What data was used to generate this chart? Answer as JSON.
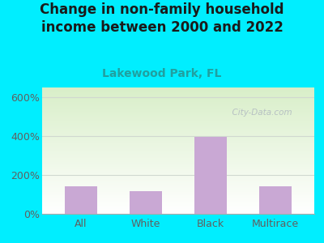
{
  "title": "Change in non-family household\nincome between 2000 and 2022",
  "subtitle": "Lakewood Park, FL",
  "categories": [
    "All",
    "White",
    "Black",
    "Multirace"
  ],
  "values": [
    140,
    115,
    395,
    140
  ],
  "bar_color": "#c9a8d4",
  "background_outer": "#00eeff",
  "ylabel_ticks": [
    0,
    200,
    400,
    600
  ],
  "ylim": [
    0,
    650
  ],
  "watermark": "  City-Data.com",
  "title_fontsize": 12,
  "subtitle_fontsize": 10,
  "tick_fontsize": 9,
  "title_color": "#1a1a1a",
  "subtitle_color": "#20a0a0",
  "tick_color": "#606060",
  "watermark_color": "#b0b8c0",
  "grid_color": "#d0d8d0",
  "plot_bg_green": "#d8eec8",
  "plot_bg_white": "#ffffff"
}
